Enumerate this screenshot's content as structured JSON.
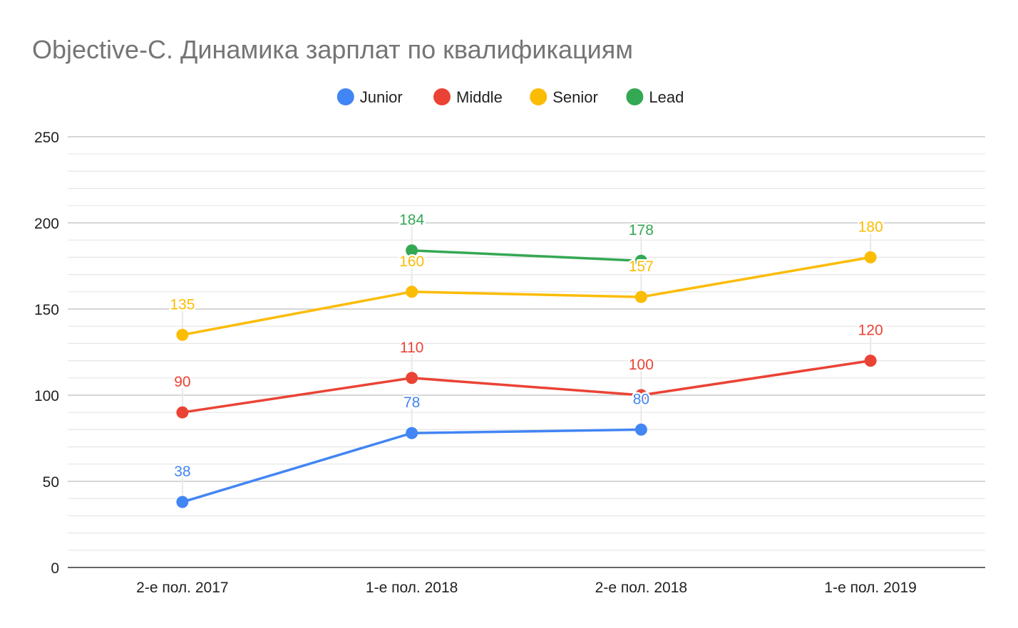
{
  "chart_data": {
    "type": "line",
    "title": "Objective-C. Динамика зарплат по квалификациям",
    "xlabel": "",
    "ylabel": "",
    "categories": [
      "2-е пол. 2017",
      "1-е пол. 2018",
      "2-е пол. 2018",
      "1-е пол. 2019"
    ],
    "ylim": [
      0,
      250
    ],
    "yticks": [
      0,
      50,
      100,
      150,
      200,
      250
    ],
    "minor_grid_step": 10,
    "grid": true,
    "legend_position": "top",
    "data_labels": true,
    "series": [
      {
        "name": "Junior",
        "color": "#4285F4",
        "values": [
          38,
          78,
          80,
          null
        ]
      },
      {
        "name": "Middle",
        "color": "#EA4335",
        "values": [
          90,
          110,
          100,
          120
        ]
      },
      {
        "name": "Senior",
        "color": "#FBBC04",
        "values": [
          135,
          160,
          157,
          180
        ]
      },
      {
        "name": "Lead",
        "color": "#34A853",
        "values": [
          null,
          184,
          178,
          null
        ]
      }
    ]
  }
}
